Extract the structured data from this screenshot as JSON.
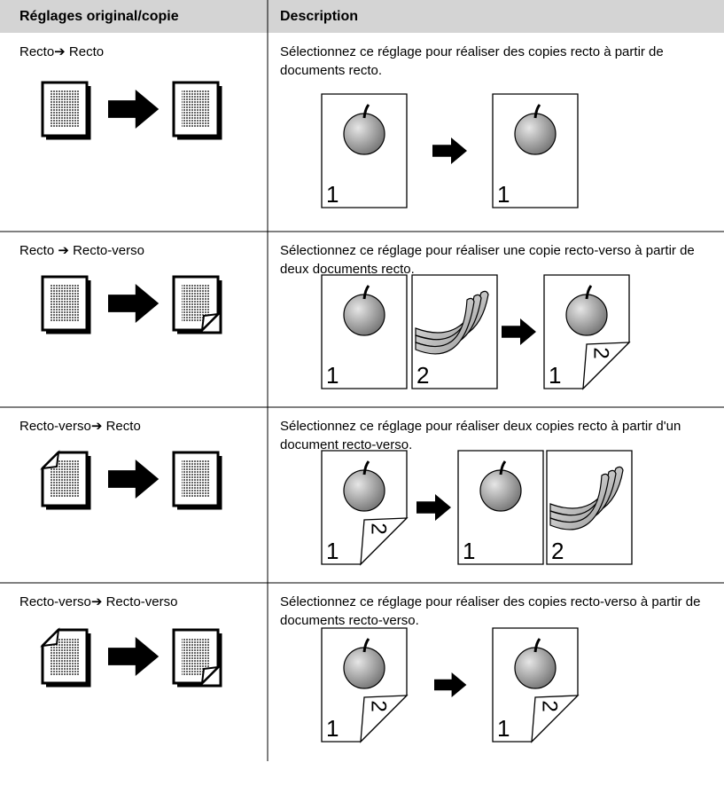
{
  "header": {
    "col1": "Réglages original/copie",
    "col2": "Description"
  },
  "rows": [
    {
      "setting": "Recto➔ Recto",
      "description": "Sélectionnez ce réglage pour réaliser des copies recto à partir de documents recto.",
      "pages": [
        {
          "front": "1"
        },
        {
          "front": "1"
        }
      ]
    },
    {
      "setting": "Recto ➔ Recto-verso",
      "description": "Sélectionnez ce réglage pour réaliser une copie recto-verso à partir de deux documents recto.",
      "pages": [
        {
          "front": "1"
        },
        {
          "front": "2"
        },
        {
          "front": "1",
          "back": "2"
        }
      ]
    },
    {
      "setting": "Recto-verso➔ Recto",
      "description": "Sélectionnez ce réglage pour réaliser deux copies recto à partir d'un document recto-verso.",
      "pages": [
        {
          "front": "1",
          "back": "2"
        },
        {
          "front": "1"
        },
        {
          "front": "2"
        }
      ]
    },
    {
      "setting": "Recto-verso➔ Recto-verso",
      "description": "Sélectionnez ce réglage pour réaliser des copies recto-verso à partir de documents recto-verso.",
      "pages": [
        {
          "front": "1",
          "back": "2"
        },
        {
          "front": "1",
          "back": "2"
        }
      ]
    }
  ]
}
